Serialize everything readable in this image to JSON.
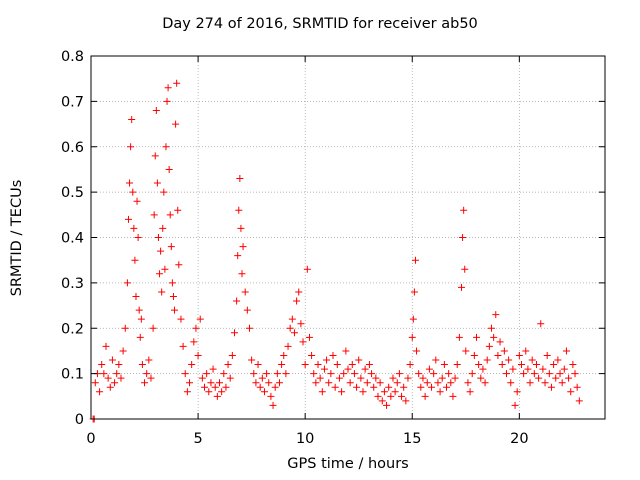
{
  "chart_data": {
    "type": "scatter",
    "title": "Day 274 of 2016, SRMTID for receiver ab50",
    "xlabel": "GPS time / hours",
    "ylabel": "SRMTID / TECUs",
    "xlim": [
      0,
      24
    ],
    "ylim": [
      0,
      0.8
    ],
    "xticks": [
      0,
      5,
      10,
      15,
      20
    ],
    "xtick_labels": [
      "0",
      "5",
      "10",
      "15",
      "20"
    ],
    "yticks": [
      0,
      0.1,
      0.2,
      0.3,
      0.4,
      0.5,
      0.6,
      0.7,
      0.8
    ],
    "ytick_labels": [
      "0",
      "0.1",
      "0.2",
      "0.3",
      "0.4",
      "0.5",
      "0.6",
      "0.7",
      "0.8"
    ],
    "grid": true,
    "marker": "+",
    "color": "#ff0000",
    "series": [
      {
        "name": "SRMTID",
        "points": [
          [
            0.1,
            0.0
          ],
          [
            0.15,
            0.0
          ],
          [
            0.2,
            0.08
          ],
          [
            0.3,
            0.1
          ],
          [
            0.4,
            0.06
          ],
          [
            0.5,
            0.12
          ],
          [
            0.6,
            0.1
          ],
          [
            0.7,
            0.16
          ],
          [
            0.8,
            0.09
          ],
          [
            0.9,
            0.07
          ],
          [
            1.0,
            0.13
          ],
          [
            1.1,
            0.08
          ],
          [
            1.2,
            0.1
          ],
          [
            1.3,
            0.12
          ],
          [
            1.4,
            0.09
          ],
          [
            1.5,
            0.15
          ],
          [
            1.6,
            0.2
          ],
          [
            1.7,
            0.3
          ],
          [
            1.75,
            0.44
          ],
          [
            1.8,
            0.52
          ],
          [
            1.85,
            0.6
          ],
          [
            1.9,
            0.66
          ],
          [
            1.95,
            0.5
          ],
          [
            2.0,
            0.42
          ],
          [
            2.05,
            0.35
          ],
          [
            2.1,
            0.27
          ],
          [
            2.15,
            0.48
          ],
          [
            2.2,
            0.4
          ],
          [
            2.25,
            0.24
          ],
          [
            2.3,
            0.18
          ],
          [
            2.35,
            0.22
          ],
          [
            2.4,
            0.12
          ],
          [
            2.5,
            0.08
          ],
          [
            2.6,
            0.1
          ],
          [
            2.7,
            0.13
          ],
          [
            2.8,
            0.09
          ],
          [
            2.9,
            0.2
          ],
          [
            2.95,
            0.45
          ],
          [
            3.0,
            0.58
          ],
          [
            3.05,
            0.68
          ],
          [
            3.1,
            0.52
          ],
          [
            3.15,
            0.4
          ],
          [
            3.2,
            0.32
          ],
          [
            3.25,
            0.37
          ],
          [
            3.3,
            0.28
          ],
          [
            3.35,
            0.42
          ],
          [
            3.4,
            0.5
          ],
          [
            3.45,
            0.33
          ],
          [
            3.5,
            0.6
          ],
          [
            3.55,
            0.7
          ],
          [
            3.6,
            0.73
          ],
          [
            3.65,
            0.55
          ],
          [
            3.7,
            0.45
          ],
          [
            3.75,
            0.38
          ],
          [
            3.8,
            0.3
          ],
          [
            3.85,
            0.27
          ],
          [
            3.9,
            0.24
          ],
          [
            3.95,
            0.65
          ],
          [
            4.0,
            0.74
          ],
          [
            4.05,
            0.46
          ],
          [
            4.1,
            0.34
          ],
          [
            4.2,
            0.22
          ],
          [
            4.3,
            0.16
          ],
          [
            4.4,
            0.1
          ],
          [
            4.5,
            0.06
          ],
          [
            4.6,
            0.08
          ],
          [
            4.7,
            0.12
          ],
          [
            4.8,
            0.17
          ],
          [
            4.9,
            0.2
          ],
          [
            5.0,
            0.14
          ],
          [
            5.1,
            0.22
          ],
          [
            5.2,
            0.09
          ],
          [
            5.3,
            0.07
          ],
          [
            5.4,
            0.1
          ],
          [
            5.5,
            0.06
          ],
          [
            5.6,
            0.08
          ],
          [
            5.7,
            0.11
          ],
          [
            5.8,
            0.07
          ],
          [
            5.9,
            0.05
          ],
          [
            6.0,
            0.08
          ],
          [
            6.1,
            0.06
          ],
          [
            6.2,
            0.1
          ],
          [
            6.3,
            0.07
          ],
          [
            6.4,
            0.12
          ],
          [
            6.5,
            0.09
          ],
          [
            6.6,
            0.14
          ],
          [
            6.7,
            0.19
          ],
          [
            6.8,
            0.26
          ],
          [
            6.85,
            0.36
          ],
          [
            6.9,
            0.46
          ],
          [
            6.95,
            0.53
          ],
          [
            7.0,
            0.42
          ],
          [
            7.05,
            0.32
          ],
          [
            7.1,
            0.38
          ],
          [
            7.2,
            0.28
          ],
          [
            7.3,
            0.24
          ],
          [
            7.4,
            0.2
          ],
          [
            7.5,
            0.13
          ],
          [
            7.6,
            0.1
          ],
          [
            7.7,
            0.08
          ],
          [
            7.8,
            0.12
          ],
          [
            7.9,
            0.07
          ],
          [
            8.0,
            0.09
          ],
          [
            8.1,
            0.06
          ],
          [
            8.2,
            0.1
          ],
          [
            8.3,
            0.08
          ],
          [
            8.4,
            0.05
          ],
          [
            8.5,
            0.03
          ],
          [
            8.6,
            0.07
          ],
          [
            8.7,
            0.1
          ],
          [
            8.8,
            0.08
          ],
          [
            8.9,
            0.12
          ],
          [
            9.0,
            0.14
          ],
          [
            9.1,
            0.1
          ],
          [
            9.2,
            0.16
          ],
          [
            9.3,
            0.2
          ],
          [
            9.4,
            0.22
          ],
          [
            9.5,
            0.19
          ],
          [
            9.6,
            0.26
          ],
          [
            9.7,
            0.28
          ],
          [
            9.8,
            0.21
          ],
          [
            9.9,
            0.17
          ],
          [
            10.0,
            0.12
          ],
          [
            10.1,
            0.33
          ],
          [
            10.2,
            0.18
          ],
          [
            10.3,
            0.14
          ],
          [
            10.4,
            0.1
          ],
          [
            10.5,
            0.08
          ],
          [
            10.6,
            0.12
          ],
          [
            10.7,
            0.09
          ],
          [
            10.8,
            0.06
          ],
          [
            10.9,
            0.11
          ],
          [
            11.0,
            0.13
          ],
          [
            11.1,
            0.08
          ],
          [
            11.2,
            0.1
          ],
          [
            11.3,
            0.14
          ],
          [
            11.4,
            0.07
          ],
          [
            11.5,
            0.12
          ],
          [
            11.6,
            0.09
          ],
          [
            11.7,
            0.06
          ],
          [
            11.8,
            0.1
          ],
          [
            11.9,
            0.15
          ],
          [
            12.0,
            0.11
          ],
          [
            12.1,
            0.08
          ],
          [
            12.2,
            0.12
          ],
          [
            12.3,
            0.1
          ],
          [
            12.4,
            0.07
          ],
          [
            12.5,
            0.13
          ],
          [
            12.6,
            0.09
          ],
          [
            12.7,
            0.06
          ],
          [
            12.8,
            0.11
          ],
          [
            12.9,
            0.08
          ],
          [
            13.0,
            0.12
          ],
          [
            13.1,
            0.1
          ],
          [
            13.2,
            0.07
          ],
          [
            13.3,
            0.09
          ],
          [
            13.4,
            0.05
          ],
          [
            13.5,
            0.08
          ],
          [
            13.6,
            0.04
          ],
          [
            13.7,
            0.06
          ],
          [
            13.8,
            0.03
          ],
          [
            13.9,
            0.07
          ],
          [
            14.0,
            0.05
          ],
          [
            14.1,
            0.09
          ],
          [
            14.2,
            0.06
          ],
          [
            14.3,
            0.08
          ],
          [
            14.4,
            0.1
          ],
          [
            14.5,
            0.05
          ],
          [
            14.6,
            0.07
          ],
          [
            14.7,
            0.04
          ],
          [
            14.8,
            0.09
          ],
          [
            14.9,
            0.12
          ],
          [
            15.0,
            0.18
          ],
          [
            15.05,
            0.22
          ],
          [
            15.1,
            0.28
          ],
          [
            15.15,
            0.35
          ],
          [
            15.2,
            0.15
          ],
          [
            15.3,
            0.1
          ],
          [
            15.4,
            0.07
          ],
          [
            15.5,
            0.09
          ],
          [
            15.6,
            0.05
          ],
          [
            15.7,
            0.08
          ],
          [
            15.8,
            0.11
          ],
          [
            15.9,
            0.07
          ],
          [
            16.0,
            0.1
          ],
          [
            16.1,
            0.13
          ],
          [
            16.2,
            0.08
          ],
          [
            16.3,
            0.06
          ],
          [
            16.4,
            0.09
          ],
          [
            16.5,
            0.12
          ],
          [
            16.6,
            0.07
          ],
          [
            16.7,
            0.1
          ],
          [
            16.8,
            0.08
          ],
          [
            16.9,
            0.05
          ],
          [
            17.0,
            0.09
          ],
          [
            17.1,
            0.12
          ],
          [
            17.2,
            0.18
          ],
          [
            17.3,
            0.29
          ],
          [
            17.35,
            0.4
          ],
          [
            17.4,
            0.46
          ],
          [
            17.45,
            0.33
          ],
          [
            17.5,
            0.15
          ],
          [
            17.6,
            0.08
          ],
          [
            17.7,
            0.06
          ],
          [
            17.8,
            0.1
          ],
          [
            17.9,
            0.14
          ],
          [
            18.0,
            0.18
          ],
          [
            18.1,
            0.12
          ],
          [
            18.2,
            0.09
          ],
          [
            18.3,
            0.11
          ],
          [
            18.4,
            0.08
          ],
          [
            18.5,
            0.13
          ],
          [
            18.6,
            0.16
          ],
          [
            18.7,
            0.2
          ],
          [
            18.8,
            0.18
          ],
          [
            18.9,
            0.23
          ],
          [
            19.0,
            0.14
          ],
          [
            19.1,
            0.17
          ],
          [
            19.2,
            0.12
          ],
          [
            19.3,
            0.15
          ],
          [
            19.4,
            0.1
          ],
          [
            19.5,
            0.13
          ],
          [
            19.6,
            0.08
          ],
          [
            19.7,
            0.11
          ],
          [
            19.8,
            0.03
          ],
          [
            19.9,
            0.06
          ],
          [
            20.0,
            0.14
          ],
          [
            20.1,
            0.12
          ],
          [
            20.2,
            0.1
          ],
          [
            20.3,
            0.15
          ],
          [
            20.4,
            0.11
          ],
          [
            20.5,
            0.08
          ],
          [
            20.6,
            0.13
          ],
          [
            20.7,
            0.1
          ],
          [
            20.8,
            0.12
          ],
          [
            20.9,
            0.09
          ],
          [
            21.0,
            0.21
          ],
          [
            21.1,
            0.11
          ],
          [
            21.2,
            0.08
          ],
          [
            21.3,
            0.14
          ],
          [
            21.4,
            0.1
          ],
          [
            21.5,
            0.07
          ],
          [
            21.6,
            0.12
          ],
          [
            21.7,
            0.09
          ],
          [
            21.8,
            0.13
          ],
          [
            21.9,
            0.1
          ],
          [
            22.0,
            0.08
          ],
          [
            22.1,
            0.11
          ],
          [
            22.2,
            0.15
          ],
          [
            22.3,
            0.09
          ],
          [
            22.4,
            0.06
          ],
          [
            22.5,
            0.12
          ],
          [
            22.6,
            0.1
          ],
          [
            22.7,
            0.07
          ],
          [
            22.8,
            0.04
          ]
        ]
      }
    ]
  }
}
